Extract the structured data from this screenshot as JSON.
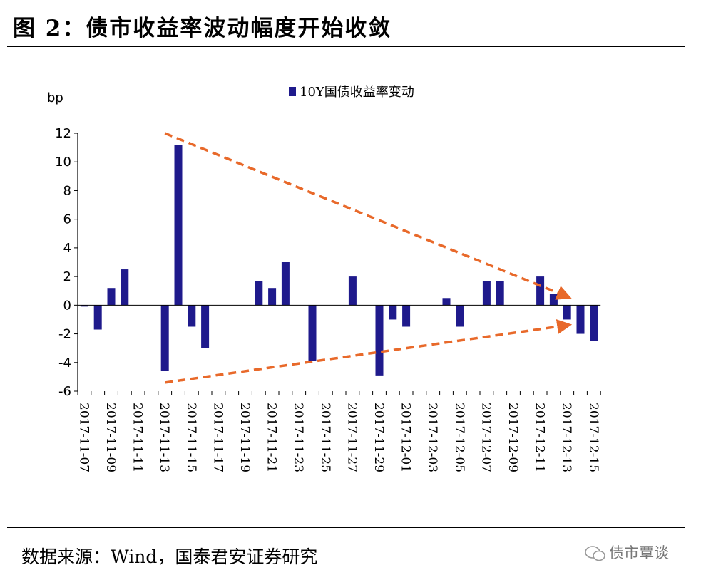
{
  "figure": {
    "title": "图 2：债市收益率波动幅度开始收敛",
    "source": "数据来源：Wind，国泰君安证券研究",
    "watermark": "债市覃谈"
  },
  "colors": {
    "bar": "#1f1a8c",
    "arrow": "#e8692a"
  },
  "chart_data": {
    "type": "bar",
    "ylabel": "bp",
    "legend": "10Y国债收益率变动",
    "legend_position": "top-center",
    "ylim": [
      -6,
      12
    ],
    "yticks": [
      12,
      10,
      8,
      6,
      4,
      2,
      0,
      -2,
      -4,
      -6
    ],
    "categories": [
      "2017-11-07",
      "2017-11-08",
      "2017-11-09",
      "2017-11-10",
      "2017-11-11",
      "2017-11-12",
      "2017-11-13",
      "2017-11-14",
      "2017-11-15",
      "2017-11-16",
      "2017-11-17",
      "2017-11-18",
      "2017-11-19",
      "2017-11-20",
      "2017-11-21",
      "2017-11-22",
      "2017-11-23",
      "2017-11-24",
      "2017-11-25",
      "2017-11-26",
      "2017-11-27",
      "2017-11-28",
      "2017-11-29",
      "2017-11-30",
      "2017-12-01",
      "2017-12-02",
      "2017-12-03",
      "2017-12-04",
      "2017-12-05",
      "2017-12-06",
      "2017-12-07",
      "2017-12-08",
      "2017-12-09",
      "2017-12-10",
      "2017-12-11",
      "2017-12-12",
      "2017-12-13",
      "2017-12-14",
      "2017-12-15"
    ],
    "values": [
      -0.1,
      -1.7,
      1.2,
      2.5,
      0,
      0,
      -4.6,
      11.2,
      -1.5,
      -3.0,
      0,
      0,
      0,
      1.7,
      1.2,
      3.0,
      0,
      -3.9,
      0,
      0,
      2.0,
      0,
      -4.9,
      -1.0,
      -1.5,
      0,
      0,
      0.5,
      -1.5,
      0,
      1.7,
      1.7,
      0,
      0,
      2.0,
      0.8,
      -1.0,
      -2.0,
      -2.5
    ],
    "xtick_labels": [
      "2017-11-07",
      "2017-11-09",
      "2017-11-11",
      "2017-11-13",
      "2017-11-15",
      "2017-11-17",
      "2017-11-19",
      "2017-11-21",
      "2017-11-23",
      "2017-11-25",
      "2017-11-27",
      "2017-11-29",
      "2017-12-01",
      "2017-12-03",
      "2017-12-05",
      "2017-12-07",
      "2017-12-09",
      "2017-12-11",
      "2017-12-13",
      "2017-12-15"
    ],
    "annotations": [
      {
        "type": "dashed-arrow",
        "from": [
          "2017-11-13",
          12
        ],
        "to": [
          "2017-12-13",
          0.6
        ]
      },
      {
        "type": "dashed-arrow",
        "from": [
          "2017-11-13",
          -5.4
        ],
        "to": [
          "2017-12-13",
          -1.4
        ]
      }
    ]
  }
}
